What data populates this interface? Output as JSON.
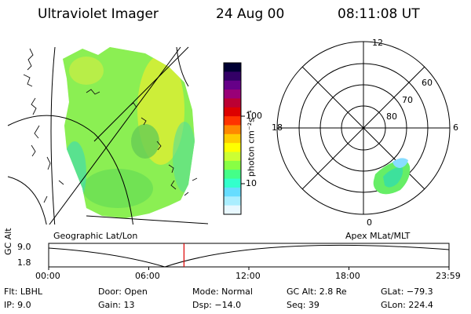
{
  "header": {
    "instrument": "Ultraviolet Imager",
    "date": "24 Aug 00",
    "time": "08:11:08 UT"
  },
  "colorbar": {
    "units": "photon cm⁻²s⁻¹",
    "tick_labels": [
      "100",
      "10"
    ],
    "colors": [
      "#000033",
      "#330066",
      "#660088",
      "#990077",
      "#bb0033",
      "#dd0000",
      "#ff3300",
      "#ff8800",
      "#ffcc00",
      "#ffff00",
      "#ccff33",
      "#88ff44",
      "#44ff88",
      "#33ffcc",
      "#66ddff",
      "#aaeeff",
      "#e8f8ff"
    ]
  },
  "left_panel": {
    "caption": "Geographic Lat/Lon"
  },
  "right_panel": {
    "caption": "Apex MLat/MLT",
    "mlt_labels": {
      "top": "12",
      "left": "18",
      "right": "6",
      "bottom": "0"
    },
    "lat_labels": [
      "60",
      "70",
      "80"
    ]
  },
  "altitude_plot": {
    "ylabel": "GC Alt",
    "yticks": [
      "9.0",
      "1.8"
    ],
    "xticks": [
      "00:00",
      "06:00",
      "12:00",
      "18:00",
      "23:59"
    ],
    "current_time_fraction": 0.338
  },
  "info": {
    "col1": [
      "Flt: LBHL",
      "IP:  9.0"
    ],
    "col2": [
      "Door: Open",
      "Gain: 13"
    ],
    "col3": [
      "Mode: Normal",
      "Dsp:  −14.0"
    ],
    "col4": [
      "GC Alt: 2.8 Re",
      "Seq: 39"
    ],
    "col5": [
      "GLat: −79.3",
      "GLon: 224.4"
    ]
  }
}
